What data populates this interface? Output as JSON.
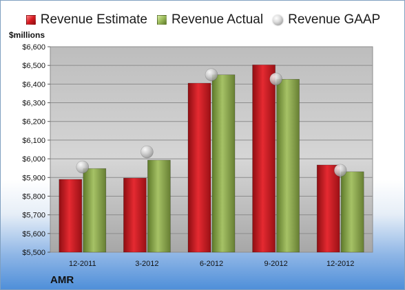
{
  "company": "AMR",
  "units_label": "$millions",
  "legend": [
    {
      "label": "Revenue Estimate",
      "swatch": "red"
    },
    {
      "label": "Revenue Actual",
      "swatch": "green"
    },
    {
      "label": "Revenue GAAP",
      "swatch": "gaap"
    }
  ],
  "colors": {
    "estimate": "#c8141c",
    "actual": "#8aac4a",
    "gaap": "#c9c9c9",
    "plot_background": "#c4c4c4",
    "grid": "#8c8c8c"
  },
  "chart_data": {
    "type": "bar",
    "categories": [
      "12-2011",
      "3-2012",
      "6-2012",
      "9-2012",
      "12-2012"
    ],
    "series": [
      {
        "name": "Revenue Estimate",
        "values": [
          5890,
          5897,
          6405,
          6503,
          5967
        ]
      },
      {
        "name": "Revenue Actual",
        "values": [
          5948,
          5993,
          6450,
          6426,
          5931
        ]
      },
      {
        "name": "Revenue GAAP",
        "values": [
          5956,
          6037,
          6450,
          6427,
          5938
        ]
      }
    ],
    "ylabel": "$millions",
    "ylim": [
      5500,
      6600
    ],
    "ytick_labels": [
      "$5,500",
      "$5,600",
      "$5,700",
      "$5,800",
      "$5,900",
      "$6,000",
      "$6,100",
      "$6,200",
      "$6,300",
      "$6,400",
      "$6,500",
      "$6,600"
    ],
    "grid": true,
    "legend_position": "top"
  }
}
